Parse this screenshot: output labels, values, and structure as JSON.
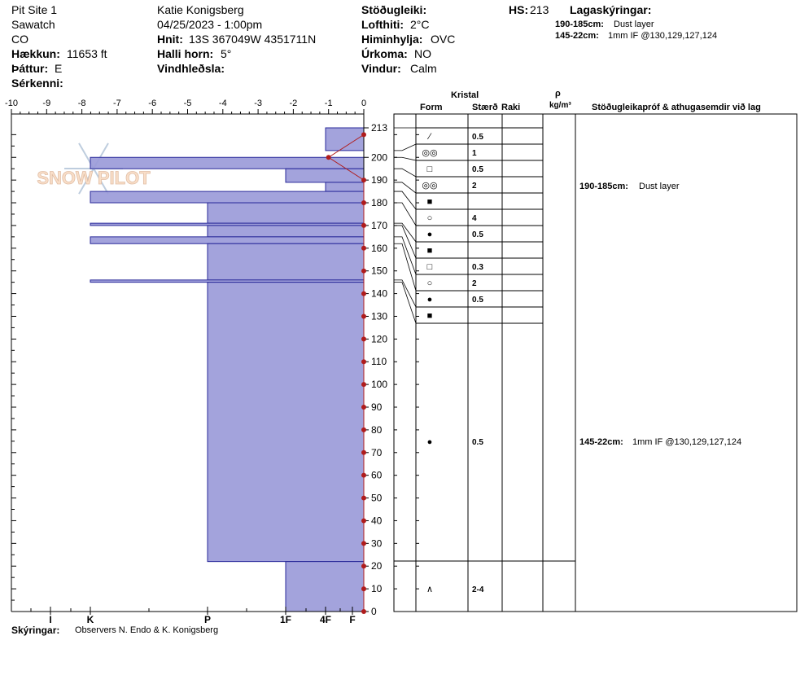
{
  "header": {
    "site": "Pit Site 1",
    "range": "Sawatch",
    "state": "CO",
    "elev_label": "Hækkun:",
    "elev_value": "11653 ft",
    "aspect_label": "Þáttur:",
    "aspect_value": "E",
    "specifics_label": "Sérkenni:",
    "observer": "Katie Konigsberg",
    "datetime": "04/25/2023 - 1:00pm",
    "coords_label": "Hnit:",
    "coords_value": "13S 367049W 4351711N",
    "slope_label": "Halli horn:",
    "slope_value": "5°",
    "wind_load_label": "Vindhleðsla:",
    "stability_label": "Stöðugleiki:",
    "air_temp_label": "Lofthiti:",
    "air_temp_value": "2°C",
    "sky_label": "Himinhylja:",
    "sky_value": "OVC",
    "precip_label": "Úrkoma:",
    "precip_value": "NO",
    "wind_label": "Vindur:",
    "wind_value": "Calm",
    "hs_label": "HS:",
    "hs_value": "213",
    "legend_title": "Lagaskýringar:",
    "legend_1_range": "190-185cm:",
    "legend_1_text": "Dust layer",
    "legend_2_range": "145-22cm:",
    "legend_2_text": "1mm IF @130,129,127,124"
  },
  "table_header": {
    "kristal": "Kristal",
    "form": "Form",
    "size": "Stærð",
    "moisture": "Raki",
    "rho": "ρ",
    "density_unit": "kg/m³",
    "comments": "Stöðugleikapróf & athugasemdir við lag"
  },
  "footer": {
    "notes_label": "Skýringar:",
    "notes_value": "Observers N. Endo & K. Konigsberg"
  },
  "logo_text": "SNOW PILOT",
  "colors": {
    "layer_fill": "#9b9bd9",
    "layer_edge": "#2a2a9a",
    "temp": "#b01c1c"
  },
  "chart_data": {
    "type": "snow-profile",
    "y_range": [
      0,
      213
    ],
    "y_ticks": [
      0,
      10,
      20,
      30,
      40,
      50,
      60,
      70,
      80,
      90,
      100,
      110,
      120,
      130,
      140,
      150,
      160,
      170,
      180,
      190,
      200,
      213
    ],
    "temp_range": [
      -10,
      0
    ],
    "temp_ticks": [
      "-10",
      "-9",
      "-8",
      "-7",
      "-6",
      "-5",
      "-4",
      "-3",
      "-2",
      "-1",
      "0"
    ],
    "hardness_ticks": [
      "I",
      "K",
      "P",
      "1F",
      "4F",
      "F"
    ],
    "hardness_layers": [
      {
        "top": 213,
        "bottom": 203,
        "hardness": "4F"
      },
      {
        "top": 200,
        "bottom": 195,
        "hardness": "K"
      },
      {
        "top": 195,
        "bottom": 189,
        "hardness": "1F"
      },
      {
        "top": 189,
        "bottom": 185,
        "hardness": "4F"
      },
      {
        "top": 185,
        "bottom": 180,
        "hardness": "K"
      },
      {
        "top": 180,
        "bottom": 171,
        "hardness": "P"
      },
      {
        "top": 171,
        "bottom": 170,
        "hardness": "K"
      },
      {
        "top": 170,
        "bottom": 165,
        "hardness": "P"
      },
      {
        "top": 165,
        "bottom": 162,
        "hardness": "K"
      },
      {
        "top": 162,
        "bottom": 146,
        "hardness": "P"
      },
      {
        "top": 146,
        "bottom": 145,
        "hardness": "K"
      },
      {
        "top": 145,
        "bottom": 22,
        "hardness": "P"
      },
      {
        "top": 22,
        "bottom": 0,
        "hardness": "1F"
      }
    ],
    "temperature_profile": [
      {
        "depth": 0,
        "temp": 0
      },
      {
        "depth": 10,
        "temp": 0
      },
      {
        "depth": 20,
        "temp": 0
      },
      {
        "depth": 30,
        "temp": 0
      },
      {
        "depth": 40,
        "temp": 0
      },
      {
        "depth": 50,
        "temp": 0
      },
      {
        "depth": 60,
        "temp": 0
      },
      {
        "depth": 70,
        "temp": 0
      },
      {
        "depth": 80,
        "temp": 0
      },
      {
        "depth": 90,
        "temp": 0
      },
      {
        "depth": 100,
        "temp": 0
      },
      {
        "depth": 110,
        "temp": 0
      },
      {
        "depth": 120,
        "temp": 0
      },
      {
        "depth": 130,
        "temp": 0
      },
      {
        "depth": 140,
        "temp": 0
      },
      {
        "depth": 150,
        "temp": 0
      },
      {
        "depth": 160,
        "temp": 0
      },
      {
        "depth": 170,
        "temp": 0
      },
      {
        "depth": 180,
        "temp": 0
      },
      {
        "depth": 190,
        "temp": 0
      },
      {
        "depth": 200,
        "temp": -1
      },
      {
        "depth": 210,
        "temp": 0
      }
    ],
    "layer_boundaries": [
      213,
      203,
      200,
      195,
      189,
      185,
      180,
      171,
      170,
      165,
      162,
      146,
      145,
      22,
      0
    ],
    "crystal_rows": [
      {
        "symbol": "⁄",
        "size": "0.5"
      },
      {
        "symbol": "◎◎",
        "size": "1"
      },
      {
        "symbol": "□",
        "size": "0.5"
      },
      {
        "symbol": "◎◎",
        "size": "2"
      },
      {
        "symbol": "■",
        "size": ""
      },
      {
        "symbol": "○",
        "size": "4"
      },
      {
        "symbol": "●",
        "size": "0.5"
      },
      {
        "symbol": "■",
        "size": ""
      },
      {
        "symbol": "□",
        "size": "0.3"
      },
      {
        "symbol": "○",
        "size": "2"
      },
      {
        "symbol": "●",
        "size": "0.5"
      },
      {
        "symbol": "■",
        "size": ""
      },
      {
        "symbol": "●",
        "size": "0.5"
      },
      {
        "symbol": "∧",
        "size": "2-4"
      }
    ]
  }
}
